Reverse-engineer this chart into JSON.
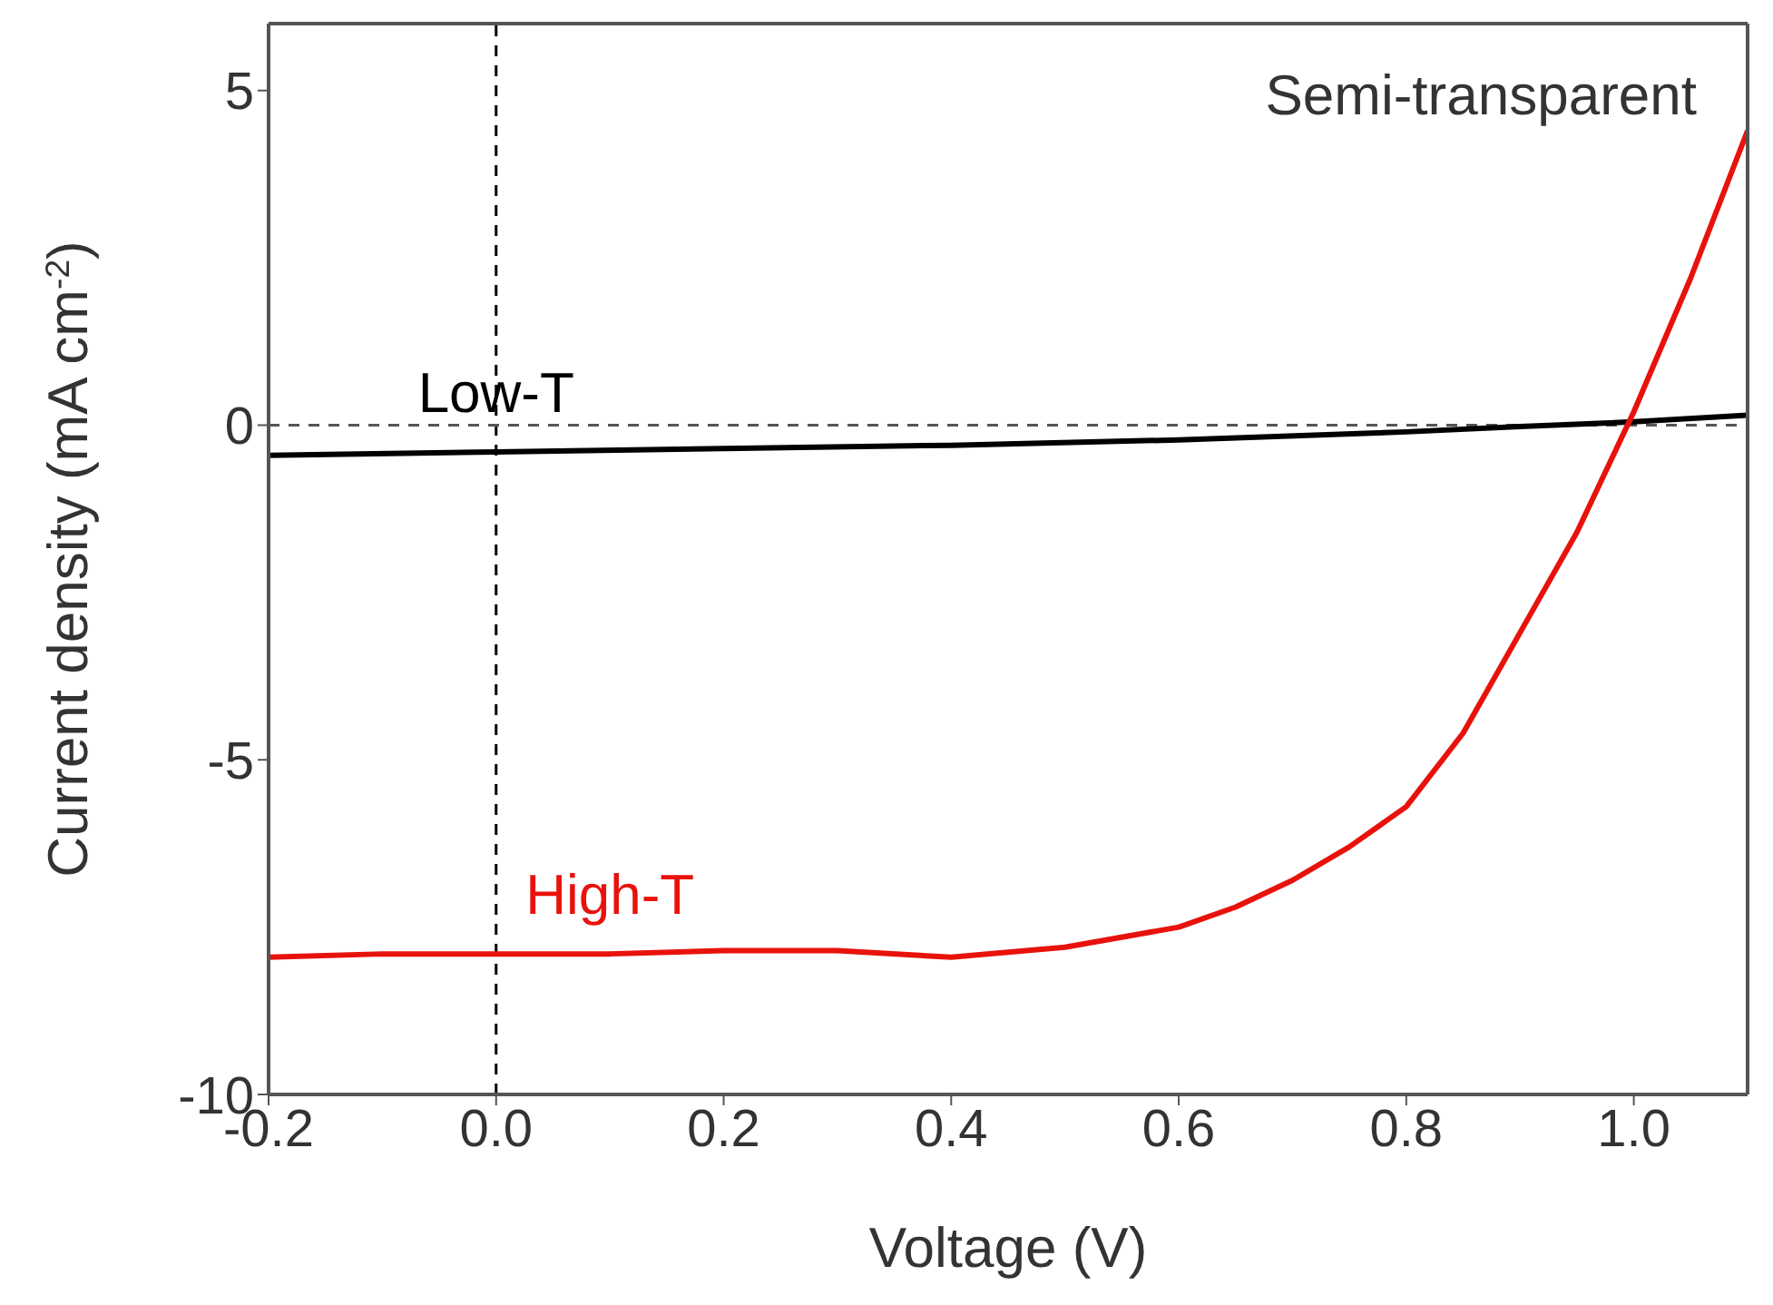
{
  "chart_data": {
    "type": "line",
    "xlabel": "Voltage (V)",
    "ylabel": "Current density (mA cm$^{-2}$)",
    "xlim": [
      -0.2,
      1.1
    ],
    "ylim": [
      -10,
      6
    ],
    "xticks": [
      -0.2,
      {
        "value": 0,
        "label": "0.0"
      },
      0.2,
      0.4,
      0.6,
      0.8,
      {
        "value": 1,
        "label": "1.0"
      }
    ],
    "yticks": [
      -10,
      -5,
      0,
      5
    ],
    "marker": "none",
    "line_style": "solid",
    "annotations": [
      "Semi-transparent"
    ],
    "ref_lines": [
      {
        "axis": "x",
        "value": 0,
        "color": "#000000",
        "line_style": "dashed"
      },
      {
        "axis": "y",
        "value": 0,
        "color": "#555555",
        "line_style": "dashed"
      }
    ],
    "series": [
      {
        "name": "Low-T",
        "color": "#000000",
        "x": [
          -0.2,
          0,
          0.2,
          0.4,
          0.6,
          0.8,
          0.9,
          1.0,
          1.1
        ],
        "values": [
          -0.45,
          -0.4,
          -0.35,
          -0.3,
          -0.22,
          -0.1,
          -0.02,
          0.05,
          0.15
        ]
      },
      {
        "name": "High-T",
        "color": "#e8120c",
        "x": [
          -0.2,
          -0.1,
          0,
          0.1,
          0.2,
          0.3,
          0.4,
          0.5,
          0.6,
          0.65,
          0.7,
          0.75,
          0.8,
          0.85,
          0.9,
          0.95,
          1.0,
          1.05,
          1.1
        ],
        "values": [
          -7.95,
          -7.9,
          -7.9,
          -7.9,
          -7.85,
          -7.85,
          -7.95,
          -7.8,
          -7.5,
          -7.2,
          -6.8,
          -6.3,
          -5.7,
          -4.6,
          -3.1,
          -1.6,
          0.2,
          2.2,
          4.4
        ]
      }
    ]
  }
}
